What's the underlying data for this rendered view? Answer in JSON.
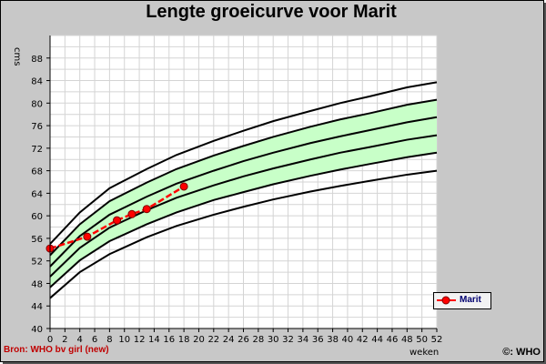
{
  "title": "Lengte groeicurve voor Marit",
  "source_label": "Bron: WHO bv girl (new)",
  "copyright_label": "©: WHO",
  "chart_data": {
    "type": "line",
    "title": "Lengte groeicurve voor Marit",
    "xlabel": "weken",
    "ylabel": "cms",
    "xlim": [
      0,
      52
    ],
    "ylim": [
      40,
      92
    ],
    "x_ticks": [
      0,
      2,
      4,
      6,
      8,
      10,
      12,
      14,
      16,
      18,
      20,
      22,
      24,
      26,
      28,
      30,
      32,
      34,
      36,
      38,
      40,
      42,
      44,
      46,
      48,
      50,
      52
    ],
    "y_ticks": [
      40,
      44,
      48,
      52,
      56,
      60,
      64,
      68,
      72,
      76,
      80,
      84,
      88
    ],
    "grid": true,
    "legend_position": "bottom-right",
    "reference_curves": {
      "x": [
        0,
        4,
        8,
        13,
        17,
        22,
        26,
        30,
        35,
        39,
        43,
        48,
        52
      ],
      "lines": [
        {
          "values": [
            45.4,
            50.0,
            53.2,
            56.2,
            58.2,
            60.2,
            61.6,
            62.9,
            64.3,
            65.3,
            66.2,
            67.3,
            68.0
          ]
        },
        {
          "values": [
            47.3,
            52.1,
            55.5,
            58.5,
            60.6,
            62.8,
            64.2,
            65.6,
            67.1,
            68.2,
            69.2,
            70.4,
            71.2
          ]
        },
        {
          "values": [
            49.2,
            54.3,
            57.9,
            61.0,
            63.2,
            65.4,
            67.0,
            68.4,
            70.0,
            71.2,
            72.2,
            73.5,
            74.3
          ]
        },
        {
          "values": [
            51.0,
            56.4,
            60.2,
            63.4,
            65.7,
            68.0,
            69.7,
            71.2,
            72.9,
            74.1,
            75.2,
            76.6,
            77.5
          ]
        },
        {
          "values": [
            53.0,
            58.5,
            62.6,
            65.9,
            68.3,
            70.7,
            72.4,
            74.0,
            75.8,
            77.1,
            78.2,
            79.7,
            80.6
          ]
        },
        {
          "values": [
            55.0,
            60.6,
            64.9,
            68.3,
            70.8,
            73.3,
            75.1,
            76.8,
            78.6,
            80.0,
            81.2,
            82.8,
            83.7
          ]
        }
      ],
      "band_color": "#c8ffc8"
    },
    "series": [
      {
        "name": "Marit",
        "color": "#ff0000",
        "x": [
          0,
          5,
          9,
          11,
          13,
          18
        ],
        "y": [
          54.2,
          56.3,
          59.2,
          60.3,
          61.2,
          65.2
        ]
      }
    ]
  }
}
